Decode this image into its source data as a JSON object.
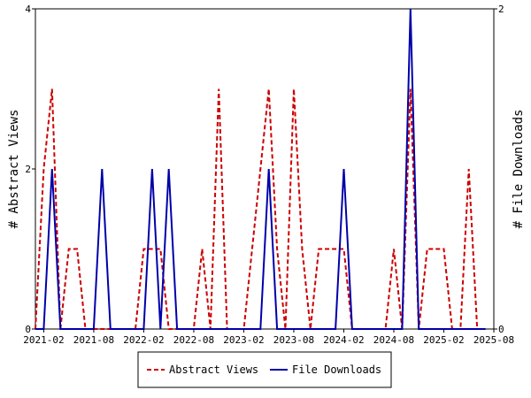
{
  "chart_data": {
    "type": "line",
    "x": [
      "2021-01",
      "2021-02",
      "2021-03",
      "2021-04",
      "2021-05",
      "2021-06",
      "2021-07",
      "2021-08",
      "2021-09",
      "2021-10",
      "2021-11",
      "2021-12",
      "2022-01",
      "2022-02",
      "2022-03",
      "2022-04",
      "2022-05",
      "2022-06",
      "2022-07",
      "2022-08",
      "2022-09",
      "2022-10",
      "2022-11",
      "2022-12",
      "2023-01",
      "2023-02",
      "2023-03",
      "2023-04",
      "2023-05",
      "2023-06",
      "2023-07",
      "2023-08",
      "2023-09",
      "2023-10",
      "2023-11",
      "2023-12",
      "2024-01",
      "2024-02",
      "2024-03",
      "2024-04",
      "2024-05",
      "2024-06",
      "2024-07",
      "2024-08",
      "2024-09",
      "2024-10",
      "2024-11",
      "2024-12",
      "2025-01",
      "2025-02",
      "2025-03",
      "2025-04",
      "2025-05",
      "2025-06",
      "2025-07"
    ],
    "series": [
      {
        "name": "Abstract Views",
        "axis": "left",
        "color": "#cc0000",
        "dash": true,
        "values": [
          0,
          2,
          3,
          0,
          1,
          1,
          0,
          0,
          0,
          0,
          0,
          0,
          0,
          1,
          1,
          1,
          0,
          0,
          0,
          0,
          1,
          0,
          3,
          0,
          0,
          0,
          1,
          2,
          3,
          1,
          0,
          3,
          1,
          0,
          1,
          1,
          1,
          1,
          0,
          0,
          0,
          0,
          0,
          1,
          0,
          3,
          0,
          1,
          1,
          1,
          0,
          0,
          2,
          0,
          0
        ]
      },
      {
        "name": "File Downloads",
        "axis": "right",
        "color": "#0000aa",
        "dash": false,
        "values": [
          0,
          0,
          1,
          0,
          0,
          0,
          0,
          0,
          1,
          0,
          0,
          0,
          0,
          0,
          1,
          0,
          1,
          0,
          0,
          0,
          0,
          0,
          0,
          0,
          0,
          0,
          0,
          0,
          1,
          0,
          0,
          0,
          0,
          0,
          0,
          0,
          0,
          1,
          0,
          0,
          0,
          0,
          0,
          0,
          0,
          2,
          0,
          0,
          0,
          0,
          0,
          0,
          0,
          0,
          0
        ]
      }
    ],
    "x_ticks": [
      "2021-02",
      "2021-08",
      "2022-02",
      "2022-08",
      "2023-02",
      "2023-08",
      "2024-02",
      "2024-08",
      "2025-02",
      "2025-08"
    ],
    "y_left": {
      "label": "# Abstract Views",
      "ticks": [
        "0",
        "2",
        "4"
      ],
      "range": [
        0,
        4
      ]
    },
    "y_right": {
      "label": "# File Downloads",
      "ticks": [
        "0",
        "2"
      ],
      "range": [
        0,
        2
      ]
    },
    "x_range": [
      "2021-01",
      "2025-08"
    ],
    "grid": false,
    "legend_position": "bottom"
  }
}
